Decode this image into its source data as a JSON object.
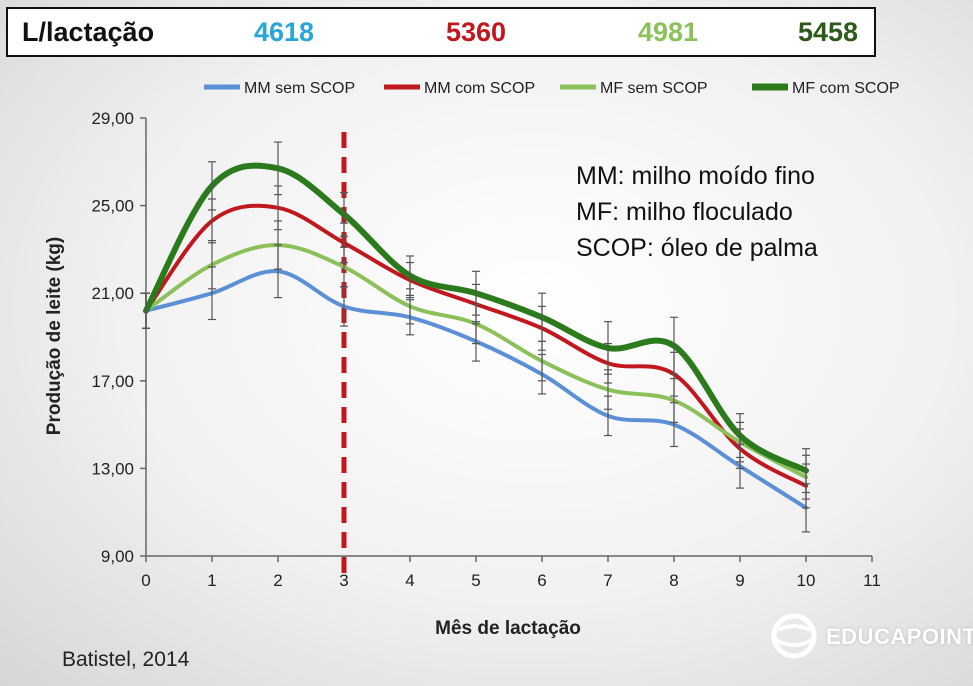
{
  "header": {
    "label": "L/lactação",
    "values": [
      {
        "text": "4618",
        "color": "#2aa5d8"
      },
      {
        "text": "5360",
        "color": "#c0181e"
      },
      {
        "text": "4981",
        "color": "#8cc05a"
      },
      {
        "text": "5458",
        "color": "#2d5a1b"
      }
    ]
  },
  "notes": [
    "MM: milho moído fino",
    "MF: milho floculado",
    "SCOP: óleo de palma"
  ],
  "source": "Batistel, 2014",
  "logo_text": "EDUCAPOINT",
  "chart_data": {
    "type": "line",
    "title": "",
    "xlabel": "Mês de lactação",
    "ylabel": "Produção de leite (kg)",
    "xlim": [
      0,
      11
    ],
    "ylim": [
      9,
      29
    ],
    "x_ticks": [
      "0",
      "1",
      "2",
      "3",
      "4",
      "5",
      "6",
      "7",
      "8",
      "9",
      "10",
      "11"
    ],
    "y_ticks": [
      "9,00",
      "13,00",
      "17,00",
      "21,00",
      "25,00",
      "29,00"
    ],
    "legend_position": "top",
    "vertical_marker": {
      "x": 3,
      "color": "#c0181e",
      "style": "dashed"
    },
    "x": [
      0,
      1,
      2,
      3,
      4,
      5,
      6,
      7,
      8,
      9,
      10
    ],
    "series": [
      {
        "name": "MM sem SCOP",
        "color": "#5b8fd6",
        "values": [
          20.2,
          21.0,
          22.0,
          20.4,
          19.9,
          18.8,
          17.3,
          15.4,
          15.0,
          13.1,
          11.2
        ],
        "errors": [
          0.8,
          1.2,
          1.2,
          0.9,
          0.8,
          0.9,
          0.9,
          0.9,
          1.0,
          1.0,
          1.1
        ]
      },
      {
        "name": "MM com SCOP",
        "color": "#c0181e",
        "values": [
          20.2,
          24.3,
          24.9,
          23.3,
          21.6,
          20.5,
          19.4,
          17.8,
          17.3,
          13.9,
          12.2
        ],
        "errors": [
          0.8,
          1.0,
          1.0,
          0.9,
          0.8,
          0.9,
          1.0,
          0.9,
          1.0,
          0.9,
          1.0
        ]
      },
      {
        "name": "MF sem SCOP",
        "color": "#8cc05a",
        "values": [
          20.2,
          22.3,
          23.2,
          22.2,
          20.4,
          19.6,
          17.9,
          16.6,
          16.1,
          14.2,
          12.6
        ],
        "errors": [
          0.8,
          1.1,
          1.1,
          0.9,
          0.8,
          0.9,
          0.9,
          0.9,
          1.0,
          0.9,
          1.0
        ]
      },
      {
        "name": "MF com SCOP",
        "color": "#2b7a1c",
        "values": [
          20.2,
          25.9,
          26.7,
          24.6,
          21.8,
          21.0,
          19.9,
          18.5,
          18.6,
          14.5,
          12.9
        ],
        "errors": [
          0.8,
          1.1,
          1.2,
          1.0,
          0.9,
          1.0,
          1.1,
          1.2,
          1.3,
          1.0,
          1.0
        ]
      }
    ]
  }
}
